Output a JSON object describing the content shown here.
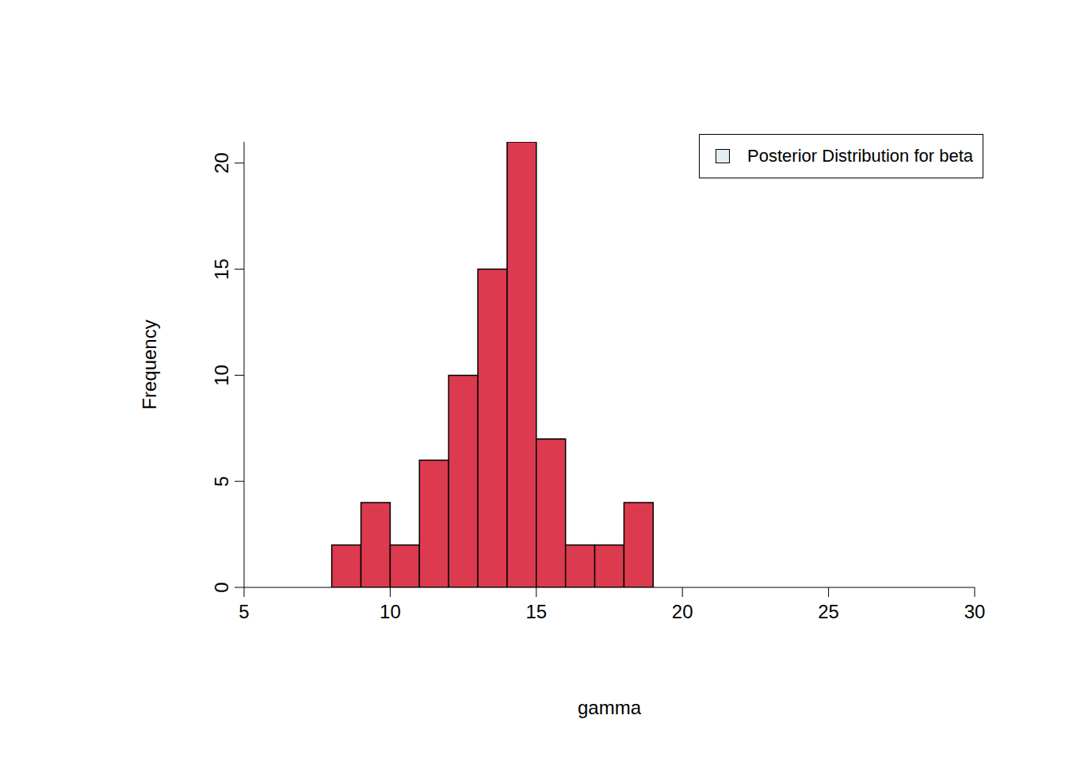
{
  "chart_data": {
    "type": "histogram",
    "xlabel": "gamma",
    "ylabel": "Frequency",
    "bins": [
      8,
      9,
      10,
      11,
      12,
      13,
      14,
      15,
      16,
      17,
      18,
      19
    ],
    "series": [
      {
        "name": "Posterior Distribution for beta",
        "color": "#DC3A4F",
        "values": [
          2,
          4,
          2,
          6,
          10,
          15,
          21,
          7,
          2,
          2,
          4
        ]
      }
    ],
    "xlim": [
      5,
      30
    ],
    "xticks": [
      5,
      10,
      15,
      20,
      25,
      30
    ],
    "ylim": [
      0,
      21
    ],
    "yticks": [
      0,
      5,
      10,
      15,
      20
    ],
    "legend": "top right",
    "grid": false
  }
}
